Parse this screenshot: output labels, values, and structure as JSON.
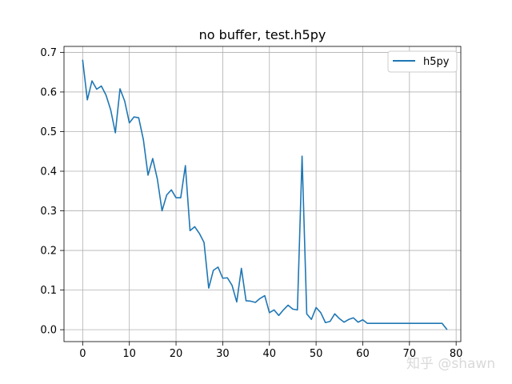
{
  "chart_data": {
    "type": "line",
    "title": "no buffer, test.h5py",
    "xlabel": "",
    "ylabel": "",
    "xlim": [
      -4,
      81
    ],
    "ylim": [
      -0.03,
      0.715
    ],
    "xticks": [
      0,
      10,
      20,
      30,
      40,
      50,
      60,
      70,
      80
    ],
    "yticks": [
      0.0,
      0.1,
      0.2,
      0.3,
      0.4,
      0.5,
      0.6,
      0.7
    ],
    "grid": true,
    "legend_position": "top-right",
    "series": [
      {
        "name": "h5py",
        "color": "#1f77b4",
        "x": [
          0,
          1,
          2,
          3,
          4,
          5,
          6,
          7,
          8,
          9,
          10,
          11,
          12,
          13,
          14,
          15,
          16,
          17,
          18,
          19,
          20,
          21,
          22,
          23,
          24,
          25,
          26,
          27,
          28,
          29,
          30,
          31,
          32,
          33,
          34,
          35,
          36,
          37,
          38,
          39,
          40,
          41,
          42,
          43,
          44,
          45,
          46,
          47,
          48,
          49,
          50,
          51,
          52,
          53,
          54,
          55,
          56,
          57,
          58,
          59,
          60,
          61,
          62,
          63,
          64,
          65,
          66,
          67,
          68,
          69,
          70,
          71,
          72,
          73,
          74,
          75,
          76,
          77,
          78
        ],
        "y": [
          0.68,
          0.58,
          0.628,
          0.607,
          0.615,
          0.592,
          0.555,
          0.497,
          0.608,
          0.577,
          0.522,
          0.537,
          0.535,
          0.48,
          0.39,
          0.432,
          0.38,
          0.3,
          0.34,
          0.353,
          0.333,
          0.333,
          0.414,
          0.25,
          0.26,
          0.243,
          0.22,
          0.105,
          0.15,
          0.158,
          0.13,
          0.131,
          0.112,
          0.07,
          0.155,
          0.073,
          0.072,
          0.069,
          0.079,
          0.086,
          0.043,
          0.05,
          0.036,
          0.05,
          0.062,
          0.052,
          0.05,
          0.438,
          0.04,
          0.026,
          0.056,
          0.043,
          0.018,
          0.021,
          0.04,
          0.028,
          0.019,
          0.026,
          0.03,
          0.019,
          0.025,
          0.016,
          0.016,
          0.016,
          0.016,
          0.016,
          0.016,
          0.016,
          0.016,
          0.016,
          0.016,
          0.016,
          0.016,
          0.016,
          0.016,
          0.016,
          0.016,
          0.016,
          0.001
        ]
      }
    ]
  },
  "watermark": {
    "text": "知乎 @shawn"
  }
}
